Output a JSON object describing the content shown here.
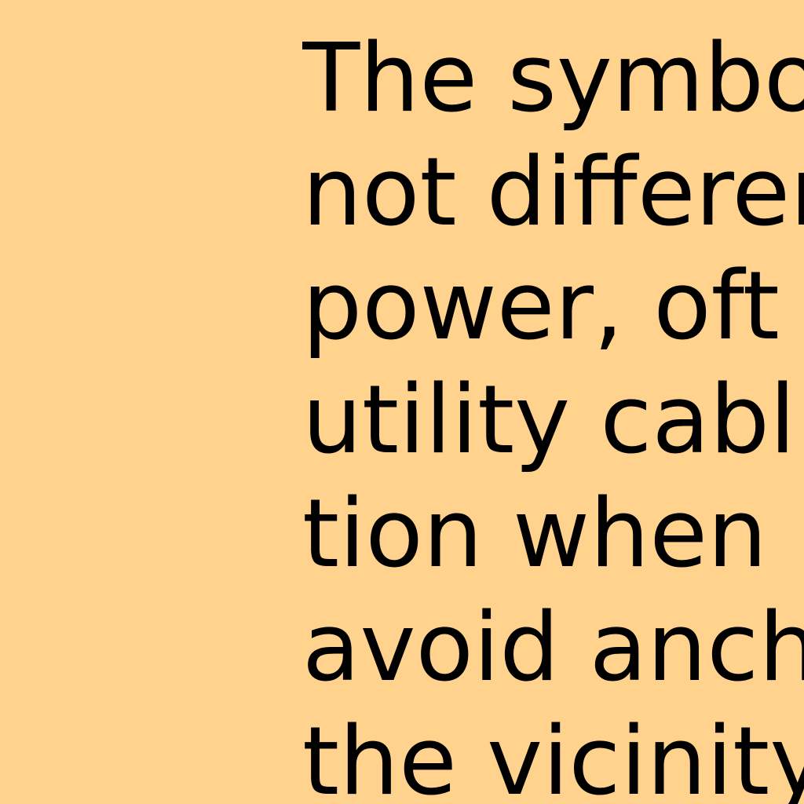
{
  "colors": {
    "background": "#FFD38D",
    "text": "#000000"
  },
  "document": {
    "lines": [
      "The symbo",
      "not differer",
      "power, oft",
      "utility cabl",
      "tion when",
      "avoid anch",
      "the vicinity"
    ]
  }
}
